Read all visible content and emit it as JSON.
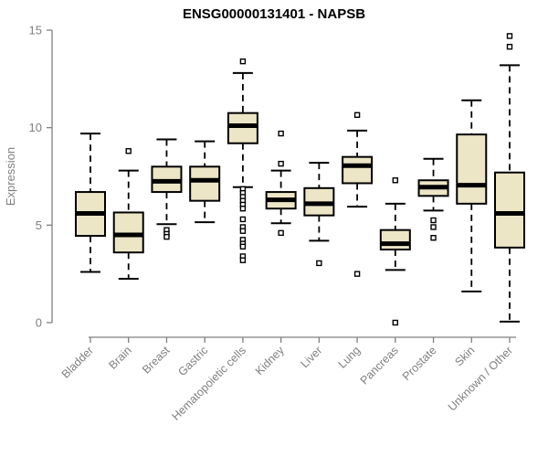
{
  "chart_data": {
    "type": "boxplot",
    "title": "ENSG00000131401 - NAPSB",
    "ylabel": "Expression",
    "xlabel": "",
    "ylim": [
      0,
      15
    ],
    "yticks": [
      0,
      5,
      10,
      15
    ],
    "grid": false,
    "legend": false,
    "categories": [
      "Bladder",
      "Brain",
      "Breast",
      "Gastric",
      "Hematopoietic cells",
      "Kidney",
      "Liver",
      "Lung",
      "Pancreas",
      "Prostate",
      "Skin",
      "Unknown / Other"
    ],
    "series": [
      {
        "name": "Bladder",
        "whisker_low": 2.6,
        "q1": 4.45,
        "median": 5.6,
        "q3": 6.7,
        "whisker_high": 9.7,
        "outliers": []
      },
      {
        "name": "Brain",
        "whisker_low": 2.25,
        "q1": 3.6,
        "median": 4.5,
        "q3": 5.65,
        "whisker_high": 7.8,
        "outliers": [
          8.8
        ]
      },
      {
        "name": "Breast",
        "whisker_low": 5.05,
        "q1": 6.7,
        "median": 7.25,
        "q3": 8.0,
        "whisker_high": 9.4,
        "outliers": [
          4.75,
          4.55,
          4.4
        ]
      },
      {
        "name": "Gastric",
        "whisker_low": 5.15,
        "q1": 6.25,
        "median": 7.3,
        "q3": 8.0,
        "whisker_high": 9.3,
        "outliers": []
      },
      {
        "name": "Hematopoietic cells",
        "whisker_low": 6.95,
        "q1": 9.2,
        "median": 10.1,
        "q3": 10.75,
        "whisker_high": 12.8,
        "outliers": [
          13.4,
          6.85,
          6.65,
          6.45,
          6.25,
          6.05,
          5.85,
          5.3,
          4.9,
          4.7,
          4.25,
          4.05,
          3.9,
          3.4,
          3.2
        ]
      },
      {
        "name": "Kidney",
        "whisker_low": 5.1,
        "q1": 5.85,
        "median": 6.3,
        "q3": 6.7,
        "whisker_high": 7.8,
        "outliers": [
          9.7,
          8.15,
          4.6
        ]
      },
      {
        "name": "Liver",
        "whisker_low": 4.2,
        "q1": 5.5,
        "median": 6.1,
        "q3": 6.9,
        "whisker_high": 8.2,
        "outliers": [
          3.05
        ]
      },
      {
        "name": "Lung",
        "whisker_low": 5.95,
        "q1": 7.15,
        "median": 8.05,
        "q3": 8.5,
        "whisker_high": 9.85,
        "outliers": [
          10.65,
          2.5
        ]
      },
      {
        "name": "Pancreas",
        "whisker_low": 2.7,
        "q1": 3.75,
        "median": 4.05,
        "q3": 4.75,
        "whisker_high": 6.1,
        "outliers": [
          7.3,
          0.0
        ]
      },
      {
        "name": "Prostate",
        "whisker_low": 5.75,
        "q1": 6.5,
        "median": 6.95,
        "q3": 7.3,
        "whisker_high": 8.4,
        "outliers": [
          5.25,
          4.9,
          4.35
        ]
      },
      {
        "name": "Skin",
        "whisker_low": 1.6,
        "q1": 6.1,
        "median": 7.05,
        "q3": 9.65,
        "whisker_high": 11.4,
        "outliers": []
      },
      {
        "name": "Unknown / Other",
        "whisker_low": 0.05,
        "q1": 3.85,
        "median": 5.6,
        "q3": 7.7,
        "whisker_high": 13.2,
        "outliers": [
          14.7,
          14.15
        ]
      }
    ],
    "colors": {
      "box_fill": "#ece5c6",
      "box_stroke": "#000000",
      "median": "#000000",
      "whisker": "#000000",
      "outlier_stroke": "#000000",
      "outlier_fill": "#ffffff",
      "axis": "#7f7f7f",
      "labels": "#7f7f7f",
      "title": "#000000",
      "background": "#ffffff"
    }
  }
}
